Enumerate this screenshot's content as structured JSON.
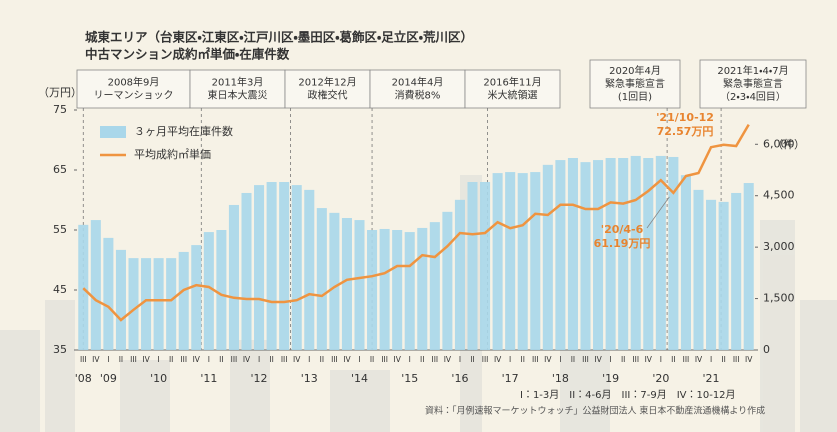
{
  "chart_data": {
    "type": "bar-line",
    "title": "城東エリア（台東区・江東区・江戸川区・墨田区・葛飾区・足立区・荒川区）",
    "subtitle": "中古マンション成約㎡単価・在庫件数",
    "y_label": "（万円）",
    "y2_label": "（件）",
    "categories": [
      "III",
      "IV",
      "I",
      "II",
      "III",
      "IV",
      "I",
      "II",
      "III",
      "IV",
      "I",
      "II",
      "III",
      "IV",
      "I",
      "II",
      "III",
      "IV",
      "I",
      "II",
      "III",
      "IV",
      "I",
      "II",
      "III",
      "IV",
      "I",
      "II",
      "III",
      "IV",
      "I",
      "II",
      "III",
      "IV",
      "I",
      "II",
      "III",
      "IV",
      "I",
      "II",
      "III",
      "IV",
      "I",
      "II",
      "III",
      "IV",
      "I",
      "II",
      "III",
      "IV",
      "I",
      "II",
      "III",
      "IV"
    ],
    "x_year_labels": [
      "'08",
      "'09",
      "'10",
      "'11",
      "'12",
      "'13",
      "'14",
      "'15",
      "'16",
      "'17",
      "'18",
      "'19",
      "'20",
      "'21"
    ],
    "series": [
      {
        "name": "３ヶ月平均在庫件数",
        "type": "bar",
        "axis": "y2",
        "color": "#a9d7ea",
        "values": [
          3650,
          3790,
          3270,
          2920,
          2680,
          2680,
          2680,
          2680,
          2860,
          3060,
          3440,
          3500,
          4230,
          4580,
          4810,
          4900,
          4900,
          4810,
          4670,
          4140,
          4000,
          3850,
          3790,
          3500,
          3530,
          3500,
          3440,
          3560,
          3730,
          4030,
          4380,
          4900,
          4900,
          5160,
          5190,
          5160,
          5190,
          5400,
          5540,
          5600,
          5480,
          5540,
          5600,
          5600,
          5660,
          5600,
          5660,
          5630,
          5100,
          4670,
          4380,
          4320,
          4580,
          4870
        ]
      },
      {
        "name": "平均成約㎡単価",
        "type": "line",
        "color": "#ef9440",
        "values": [
          45.3,
          43.3,
          42.2,
          40.0,
          41.7,
          43.3,
          43.3,
          43.3,
          45.0,
          45.8,
          45.5,
          44.2,
          43.7,
          43.5,
          43.5,
          43.0,
          43.0,
          43.3,
          44.3,
          44.0,
          45.5,
          46.7,
          47.0,
          47.3,
          47.8,
          49.0,
          49.0,
          50.8,
          50.5,
          52.3,
          54.5,
          54.3,
          54.5,
          56.3,
          55.3,
          55.8,
          57.7,
          57.5,
          59.2,
          59.2,
          58.5,
          58.5,
          59.6,
          59.4,
          60.0,
          61.5,
          63.3,
          61.19,
          64.0,
          64.5,
          68.8,
          69.2,
          69.0,
          72.57
        ],
        "value_labels": [
          null,
          null,
          null,
          null,
          null,
          null,
          null,
          null,
          null,
          null,
          null,
          null,
          null,
          null,
          null,
          null,
          null,
          null,
          null,
          null,
          null,
          null,
          null,
          null,
          null,
          null,
          null,
          null,
          null,
          null,
          null,
          null,
          null,
          null,
          null,
          null,
          null,
          null,
          null,
          null,
          null,
          null,
          null,
          null,
          null,
          null,
          null,
          "61.19万円",
          null,
          null,
          null,
          null,
          null,
          "72.57万円"
        ]
      }
    ],
    "annotations": [
      "'20/4-6",
      "'21/10-12"
    ],
    "ylim": [
      35,
      75
    ],
    "yticks": [
      35,
      45,
      55,
      65,
      75
    ],
    "y2lim": [
      0,
      7000
    ],
    "y2ticks": [
      0,
      {
        "value": 1500,
        "label": "1,500"
      },
      {
        "value": 3000,
        "label": "3,000"
      },
      {
        "value": 4500,
        "label": "4,500"
      },
      {
        "value": 6000,
        "label": "6,000"
      }
    ],
    "events": [
      [
        "2008年9月",
        "リーマンショック"
      ],
      [
        "2011年3月",
        "東日本大震災"
      ],
      [
        "2012年12月",
        "政権交代"
      ],
      [
        "2014年4月",
        "消費税8%"
      ],
      [
        "2016年11月",
        "米大統領選"
      ],
      [
        "2020年4月",
        "緊急事態宣言",
        "(1回目)"
      ],
      [
        "2021年1・4・7月",
        "緊急事態宣言",
        "（2・3・4回目）"
      ]
    ],
    "quarter_legend": "I：1-3月　II：4-6月　III：7-9月　IV：10-12月",
    "source": "資料：「月例速報マーケットウォッチ」公益財団法人 東日本不動産流通機構より作成"
  }
}
